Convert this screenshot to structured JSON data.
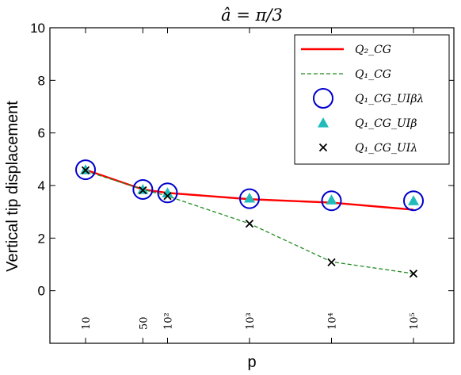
{
  "chart_data": {
    "type": "line",
    "title": "â = π/3",
    "xlabel": "p",
    "ylabel": "Vertical tip displacement",
    "x_scale": "log",
    "xlim": [
      10,
      100000
    ],
    "ylim": [
      -2,
      10
    ],
    "y_ticks": [
      0,
      2,
      4,
      6,
      8,
      10
    ],
    "x_categories": [
      "10",
      "50",
      "10²",
      "10³",
      "10⁴",
      "10⁵"
    ],
    "x": [
      10,
      50,
      100,
      1000,
      10000,
      100000
    ],
    "grid": false,
    "legend_position": "top-right",
    "series": [
      {
        "name": "Q₂_CG",
        "style": "solid-line",
        "color": "#ff0000",
        "values": [
          4.6,
          3.85,
          3.72,
          3.48,
          3.35,
          3.08
        ]
      },
      {
        "name": "Q₁_CG",
        "style": "dashed-line",
        "color": "#228b22",
        "values": [
          4.55,
          3.85,
          3.6,
          2.55,
          1.1,
          0.65
        ]
      },
      {
        "name": "Q₁_CG_UIβλ",
        "style": "circle",
        "color": "#0000cc",
        "values": [
          4.6,
          3.85,
          3.72,
          3.5,
          3.42,
          3.42
        ]
      },
      {
        "name": "Q₁_CG_UIβ",
        "style": "triangle",
        "color": "#22bbbb",
        "values": [
          4.6,
          3.85,
          3.72,
          3.52,
          3.45,
          3.42
        ]
      },
      {
        "name": "Q₁_CG_UIλ",
        "style": "x",
        "color": "#000000",
        "values": [
          4.58,
          3.82,
          3.6,
          2.55,
          1.08,
          0.65
        ]
      }
    ]
  }
}
